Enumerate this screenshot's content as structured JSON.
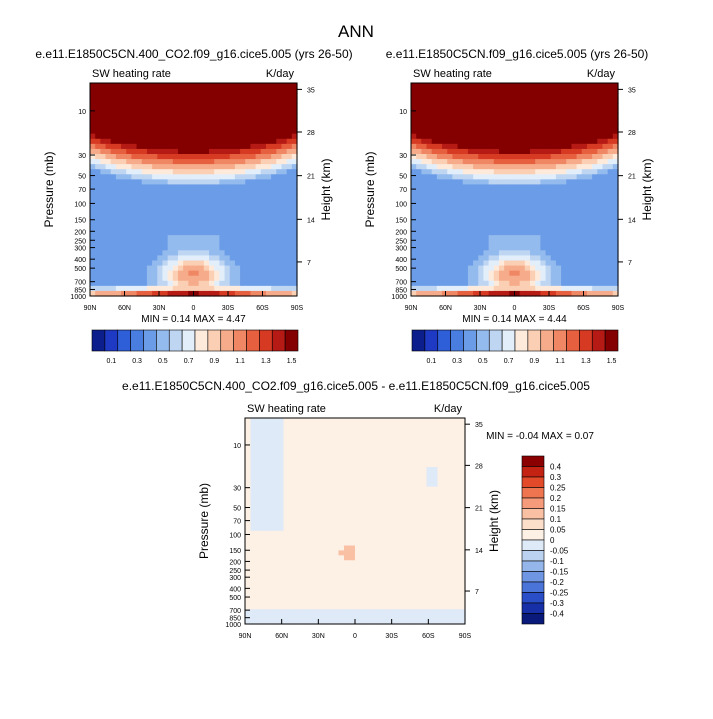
{
  "page_title": "ANN",
  "chart_data": [
    {
      "type": "contour",
      "title": "e.e11.E1850C5CN.400_CO2.f09_g16.cice5.005 (yrs 26-50)",
      "subtitle_left": "SW heating rate",
      "subtitle_right": "K/day",
      "xlabel": "",
      "ylabel": "Pressure (mb)",
      "ylabel_right": "Height (km)",
      "x_ticks": [
        "90N",
        "60N",
        "30N",
        "0",
        "30S",
        "60S",
        "90S"
      ],
      "y_ticks": [
        "10",
        "30",
        "50",
        "70",
        "100",
        "150",
        "200",
        "250",
        "300",
        "400",
        "500",
        "700",
        "850",
        "1000"
      ],
      "y_ticks_right": [
        "35",
        "28",
        "21",
        "14",
        "7"
      ],
      "stats": "MIN =  0.14  MAX =  4.47",
      "min": 0.14,
      "max": 4.47,
      "colorbar_labels": [
        "0.1",
        "0.3",
        "0.5",
        "0.7",
        "0.9",
        "1.1",
        "1.3",
        "1.5"
      ],
      "colorbar_colors": [
        "#0b1e8c",
        "#1e3ac4",
        "#2e5ed8",
        "#4a7de0",
        "#6b9ce8",
        "#94bbee",
        "#bfd6f3",
        "#e2eefa",
        "#fdeadb",
        "#fbcfb4",
        "#f6ac8a",
        "#ef8664",
        "#e6603f",
        "#d63a23",
        "#b51a14",
        "#840000"
      ]
    },
    {
      "type": "contour",
      "title": "e.e11.E1850C5CN.f09_g16.cice5.005 (yrs 26-50)",
      "subtitle_left": "SW heating rate",
      "subtitle_right": "K/day",
      "xlabel": "",
      "ylabel": "Pressure (mb)",
      "ylabel_right": "Height (km)",
      "x_ticks": [
        "90N",
        "60N",
        "30N",
        "0",
        "30S",
        "60S",
        "90S"
      ],
      "y_ticks": [
        "10",
        "30",
        "50",
        "70",
        "100",
        "150",
        "200",
        "250",
        "300",
        "400",
        "500",
        "700",
        "850",
        "1000"
      ],
      "y_ticks_right": [
        "35",
        "28",
        "21",
        "14",
        "7"
      ],
      "stats": "MIN =  0.14  MAX =  4.44",
      "min": 0.14,
      "max": 4.44,
      "colorbar_labels": [
        "0.1",
        "0.3",
        "0.5",
        "0.7",
        "0.9",
        "1.1",
        "1.3",
        "1.5"
      ],
      "colorbar_colors": [
        "#0b1e8c",
        "#1e3ac4",
        "#2e5ed8",
        "#4a7de0",
        "#6b9ce8",
        "#94bbee",
        "#bfd6f3",
        "#e2eefa",
        "#fdeadb",
        "#fbcfb4",
        "#f6ac8a",
        "#ef8664",
        "#e6603f",
        "#d63a23",
        "#b51a14",
        "#840000"
      ]
    },
    {
      "type": "contour",
      "title": "e.e11.E1850C5CN.400_CO2.f09_g16.cice5.005 - e.e11.E1850C5CN.f09_g16.cice5.005",
      "subtitle_left": "SW heating rate",
      "subtitle_right": "K/day",
      "xlabel": "",
      "ylabel": "Pressure (mb)",
      "ylabel_right": "Height (km)",
      "x_ticks": [
        "90N",
        "60N",
        "30N",
        "0",
        "30S",
        "60S",
        "90S"
      ],
      "y_ticks": [
        "10",
        "30",
        "50",
        "70",
        "100",
        "150",
        "200",
        "250",
        "300",
        "400",
        "500",
        "700",
        "850",
        "1000"
      ],
      "y_ticks_right": [
        "35",
        "28",
        "21",
        "14",
        "7"
      ],
      "stats": "MIN = -0.04  MAX =  0.07",
      "min": -0.04,
      "max": 0.07,
      "colorbar_labels": [
        "0.4",
        "0.3",
        "0.25",
        "0.2",
        "0.15",
        "0.1",
        "0.05",
        "0",
        "-0.05",
        "-0.1",
        "-0.15",
        "-0.2",
        "-0.25",
        "-0.3",
        "-0.4"
      ],
      "colorbar_colors": [
        "#8b0000",
        "#c42314",
        "#e24a2a",
        "#ee7550",
        "#f59b7b",
        "#f9c0a4",
        "#fcdfca",
        "#fdf0e5",
        "#dfeaf8",
        "#bcd2f1",
        "#95b6ea",
        "#6f96e2",
        "#4a74d8",
        "#2a4ec8",
        "#1730a8",
        "#0a1a7a"
      ]
    }
  ]
}
